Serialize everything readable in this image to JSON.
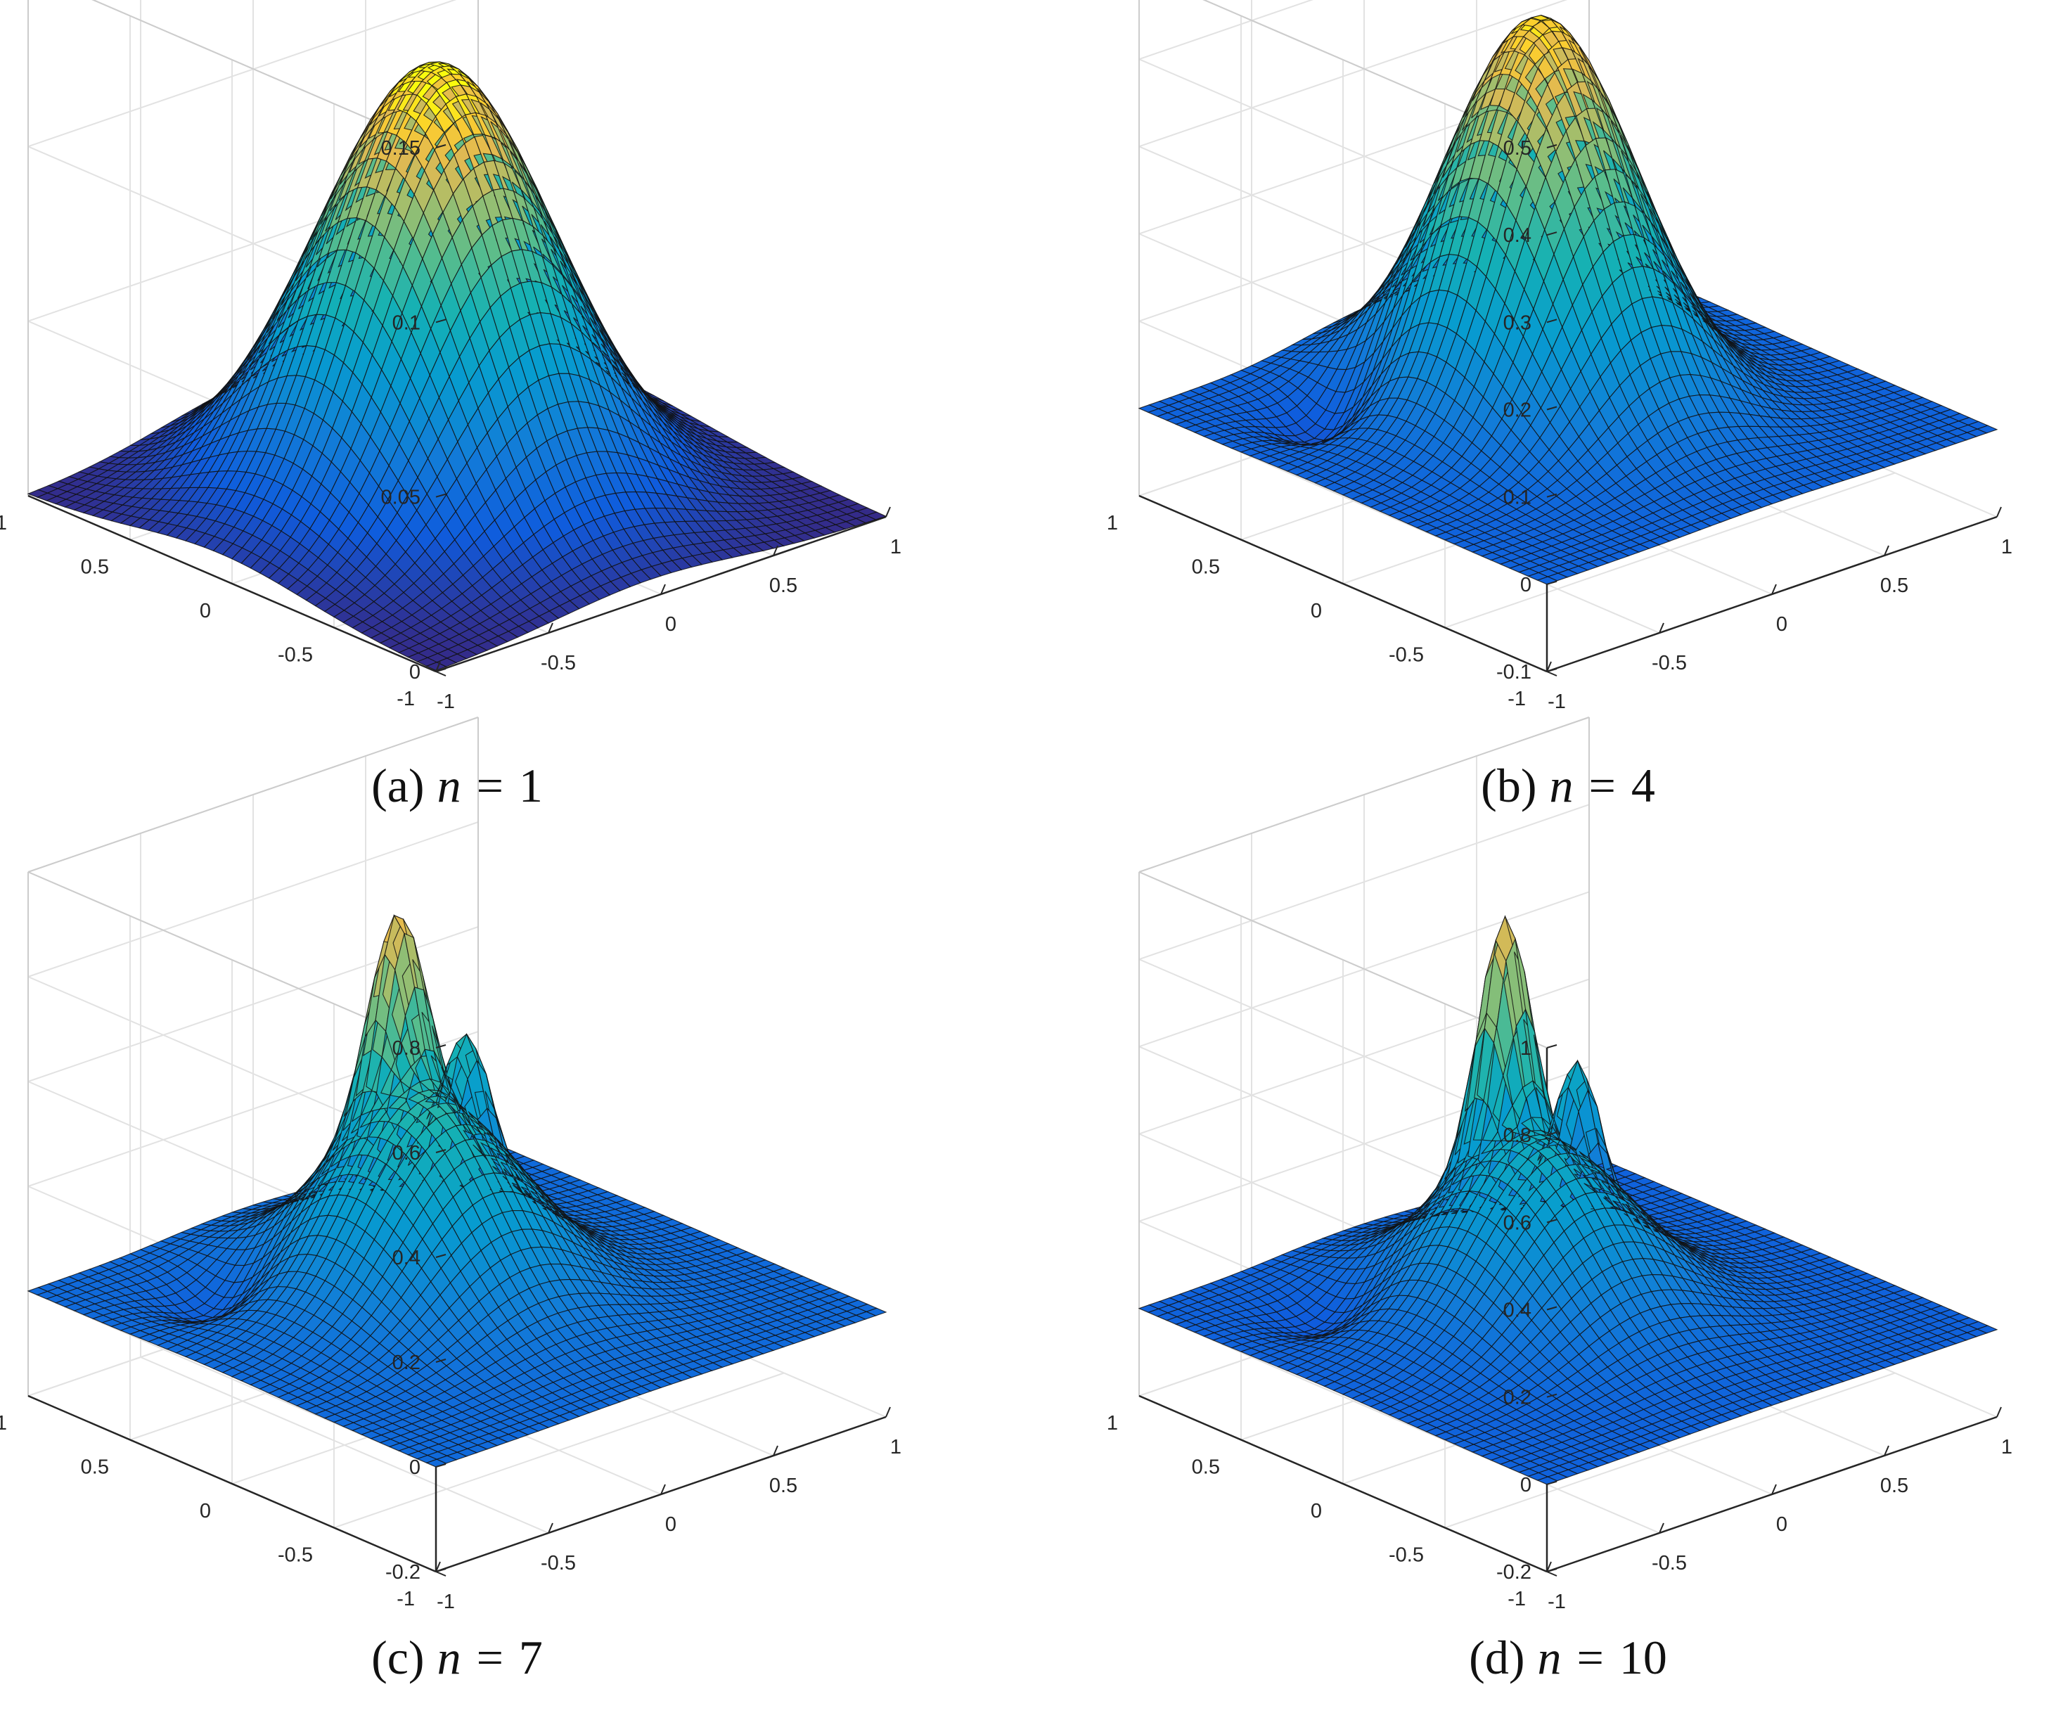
{
  "chart_data": [
    {
      "type": "surface",
      "caption": "(a) n = 1",
      "caption_prefix": "(a)",
      "caption_var": "n",
      "caption_eq": "=",
      "caption_value": "1",
      "x_ticks": [
        "-1",
        "-0.5",
        "0",
        "0.5",
        "1"
      ],
      "y_ticks": [
        "-1",
        "-0.5",
        "0",
        "0.5",
        "1"
      ],
      "z_ticks": [
        "0",
        "0.05",
        "0.1",
        "0.15"
      ],
      "xlim": [
        -1,
        1
      ],
      "ylim": [
        -1,
        1
      ],
      "zlim": [
        0,
        0.15
      ],
      "z_max": 0.12,
      "grid": true,
      "colormap": "parula"
    },
    {
      "type": "surface",
      "caption": "(b) n = 4",
      "caption_prefix": "(b)",
      "caption_var": "n",
      "caption_eq": "=",
      "caption_value": "4",
      "x_ticks": [
        "-1",
        "-0.5",
        "0",
        "0.5",
        "1"
      ],
      "y_ticks": [
        "-1",
        "-0.5",
        "0",
        "0.5",
        "1"
      ],
      "z_ticks": [
        "-0.1",
        "0",
        "0.1",
        "0.2",
        "0.3",
        "0.4",
        "0.5"
      ],
      "xlim": [
        -1,
        1
      ],
      "ylim": [
        -1,
        1
      ],
      "zlim": [
        -0.1,
        0.5
      ],
      "z_max": 0.45,
      "grid": true,
      "colormap": "parula"
    },
    {
      "type": "surface",
      "caption": "(c) n = 7",
      "caption_prefix": "(c)",
      "caption_var": "n",
      "caption_eq": "=",
      "caption_value": "7",
      "x_ticks": [
        "-1",
        "-0.5",
        "0",
        "0.5",
        "1"
      ],
      "y_ticks": [
        "-1",
        "-0.5",
        "0",
        "0.5",
        "1"
      ],
      "z_ticks": [
        "-0.2",
        "0",
        "0.2",
        "0.4",
        "0.6",
        "0.8"
      ],
      "xlim": [
        -1,
        1
      ],
      "ylim": [
        -1,
        1
      ],
      "zlim": [
        -0.2,
        0.8
      ],
      "z_max": 0.74,
      "grid": true,
      "colormap": "parula"
    },
    {
      "type": "surface",
      "caption": "(d) n = 10",
      "caption_prefix": "(d)",
      "caption_var": "n",
      "caption_eq": "=",
      "caption_value": "10",
      "x_ticks": [
        "-1",
        "-0.5",
        "0",
        "0.5",
        "1"
      ],
      "y_ticks": [
        "-1",
        "-0.5",
        "0",
        "0.5",
        "1"
      ],
      "z_ticks": [
        "-0.2",
        "0",
        "0.2",
        "0.4",
        "0.6",
        "0.8",
        "1"
      ],
      "xlim": [
        -1,
        1
      ],
      "ylim": [
        -1,
        1
      ],
      "zlim": [
        -0.2,
        1
      ],
      "z_max": 0.92,
      "grid": true,
      "colormap": "parula"
    }
  ]
}
